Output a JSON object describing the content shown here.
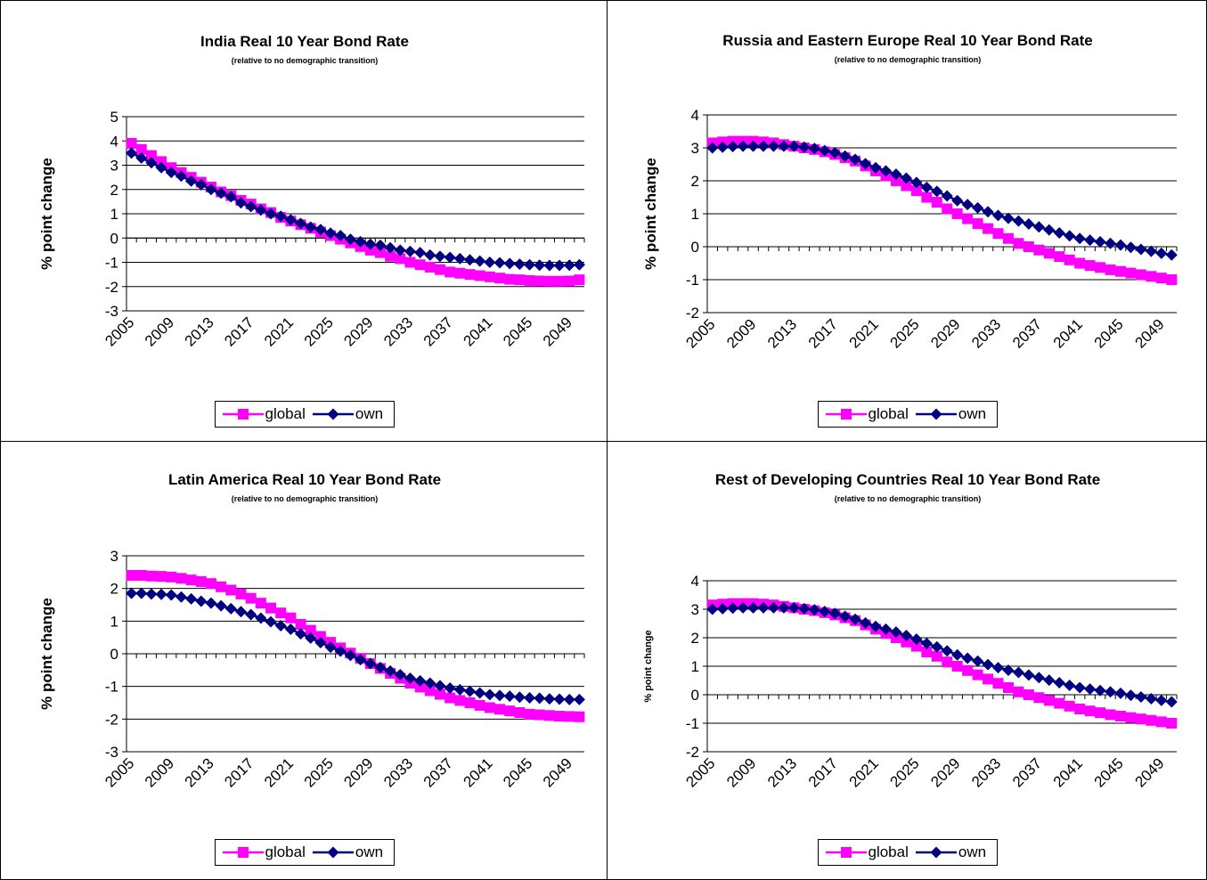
{
  "chart_data": [
    {
      "type": "line",
      "title": "India Real 10 Year Bond Rate",
      "subtitle": "(relative to no demographic transition)",
      "y_label": "% point change",
      "categories": [
        "2005",
        null,
        null,
        null,
        "2009",
        null,
        null,
        null,
        "2013",
        null,
        null,
        null,
        "2017",
        null,
        null,
        null,
        "2021",
        null,
        null,
        null,
        "2025",
        null,
        null,
        null,
        "2029",
        null,
        null,
        null,
        "2033",
        null,
        null,
        null,
        "2037",
        null,
        null,
        null,
        "2041",
        null,
        null,
        null,
        "2045",
        null,
        null,
        null,
        "2049",
        null
      ],
      "ylim": [
        -3,
        5
      ],
      "yticks": [
        -3,
        -2,
        -1,
        0,
        1,
        2,
        3,
        4,
        5
      ],
      "grid": true,
      "legend": "bottom",
      "series": [
        {
          "name": "global",
          "color": "#ff00ff",
          "marker": "square",
          "values": [
            3.9,
            3.65,
            3.4,
            3.15,
            2.9,
            2.7,
            2.5,
            2.3,
            2.1,
            1.9,
            1.75,
            1.55,
            1.4,
            1.2,
            1.05,
            0.85,
            0.7,
            0.55,
            0.4,
            0.25,
            0.1,
            -0.05,
            -0.2,
            -0.35,
            -0.5,
            -0.6,
            -0.75,
            -0.85,
            -1.0,
            -1.1,
            -1.2,
            -1.3,
            -1.4,
            -1.45,
            -1.5,
            -1.55,
            -1.6,
            -1.65,
            -1.7,
            -1.72,
            -1.75,
            -1.77,
            -1.78,
            -1.78,
            -1.77,
            -1.72
          ]
        },
        {
          "name": "own",
          "color": "#000080",
          "marker": "diamond",
          "values": [
            3.5,
            3.3,
            3.1,
            2.9,
            2.7,
            2.55,
            2.35,
            2.2,
            2.0,
            1.85,
            1.7,
            1.45,
            1.3,
            1.15,
            1.0,
            0.9,
            0.75,
            0.6,
            0.45,
            0.35,
            0.2,
            0.1,
            -0.05,
            -0.15,
            -0.25,
            -0.3,
            -0.4,
            -0.5,
            -0.55,
            -0.6,
            -0.7,
            -0.75,
            -0.8,
            -0.85,
            -0.9,
            -0.95,
            -1.0,
            -1.02,
            -1.05,
            -1.08,
            -1.1,
            -1.12,
            -1.13,
            -1.13,
            -1.12,
            -1.1
          ]
        }
      ]
    },
    {
      "type": "line",
      "title": "Russia and Eastern Europe Real 10 Year Bond Rate",
      "subtitle": "(relative to no demographic transition)",
      "y_label": "% point change",
      "categories": [
        "2005",
        null,
        null,
        null,
        "2009",
        null,
        null,
        null,
        "2013",
        null,
        null,
        null,
        "2017",
        null,
        null,
        null,
        "2021",
        null,
        null,
        null,
        "2025",
        null,
        null,
        null,
        "2029",
        null,
        null,
        null,
        "2033",
        null,
        null,
        null,
        "2037",
        null,
        null,
        null,
        "2041",
        null,
        null,
        null,
        "2045",
        null,
        null,
        null,
        "2049",
        null
      ],
      "ylim": [
        -2,
        4
      ],
      "yticks": [
        -2,
        -1,
        0,
        1,
        2,
        3,
        4
      ],
      "grid": true,
      "legend": "bottom",
      "series": [
        {
          "name": "global",
          "color": "#ff00ff",
          "marker": "square",
          "values": [
            3.15,
            3.18,
            3.2,
            3.2,
            3.2,
            3.18,
            3.15,
            3.1,
            3.05,
            3.0,
            2.95,
            2.88,
            2.8,
            2.7,
            2.6,
            2.45,
            2.3,
            2.15,
            2.0,
            1.85,
            1.7,
            1.5,
            1.35,
            1.15,
            1.0,
            0.85,
            0.7,
            0.55,
            0.4,
            0.25,
            0.1,
            0.0,
            -0.1,
            -0.2,
            -0.3,
            -0.4,
            -0.5,
            -0.57,
            -0.63,
            -0.7,
            -0.75,
            -0.8,
            -0.85,
            -0.9,
            -0.95,
            -1.0
          ]
        },
        {
          "name": "own",
          "color": "#000080",
          "marker": "diamond",
          "values": [
            3.0,
            3.02,
            3.04,
            3.05,
            3.05,
            3.05,
            3.05,
            3.05,
            3.05,
            3.02,
            2.98,
            2.92,
            2.85,
            2.75,
            2.65,
            2.52,
            2.4,
            2.3,
            2.2,
            2.08,
            1.95,
            1.8,
            1.68,
            1.54,
            1.4,
            1.28,
            1.18,
            1.06,
            0.95,
            0.86,
            0.78,
            0.69,
            0.6,
            0.51,
            0.42,
            0.33,
            0.25,
            0.2,
            0.15,
            0.1,
            0.05,
            -0.02,
            -0.08,
            -0.14,
            -0.2,
            -0.25
          ]
        }
      ]
    },
    {
      "type": "line",
      "title": "Latin America Real 10 Year Bond Rate",
      "subtitle": "(relative to no demographic transition)",
      "y_label": "% point change",
      "categories": [
        "2005",
        null,
        null,
        null,
        "2009",
        null,
        null,
        null,
        "2013",
        null,
        null,
        null,
        "2017",
        null,
        null,
        null,
        "2021",
        null,
        null,
        null,
        "2025",
        null,
        null,
        null,
        "2029",
        null,
        null,
        null,
        "2033",
        null,
        null,
        null,
        "2037",
        null,
        null,
        null,
        "2041",
        null,
        null,
        null,
        "2045",
        null,
        null,
        null,
        "2049",
        null
      ],
      "ylim": [
        -3,
        3
      ],
      "yticks": [
        -3,
        -2,
        -1,
        0,
        1,
        2,
        3
      ],
      "grid": true,
      "legend": "bottom",
      "series": [
        {
          "name": "global",
          "color": "#ff00ff",
          "marker": "square",
          "values": [
            2.4,
            2.4,
            2.38,
            2.37,
            2.35,
            2.31,
            2.26,
            2.21,
            2.15,
            2.05,
            1.95,
            1.83,
            1.7,
            1.55,
            1.4,
            1.25,
            1.1,
            0.9,
            0.72,
            0.53,
            0.35,
            0.18,
            0.02,
            -0.14,
            -0.3,
            -0.45,
            -0.6,
            -0.75,
            -0.9,
            -1.02,
            -1.13,
            -1.24,
            -1.35,
            -1.43,
            -1.5,
            -1.58,
            -1.65,
            -1.7,
            -1.75,
            -1.8,
            -1.85,
            -1.87,
            -1.89,
            -1.91,
            -1.92,
            -1.93
          ]
        },
        {
          "name": "own",
          "color": "#000080",
          "marker": "diamond",
          "values": [
            1.85,
            1.85,
            1.83,
            1.82,
            1.8,
            1.74,
            1.68,
            1.61,
            1.55,
            1.47,
            1.38,
            1.29,
            1.2,
            1.09,
            0.98,
            0.86,
            0.75,
            0.61,
            0.48,
            0.34,
            0.2,
            0.08,
            -0.05,
            -0.18,
            -0.3,
            -0.42,
            -0.53,
            -0.64,
            -0.75,
            -0.83,
            -0.9,
            -0.98,
            -1.05,
            -1.1,
            -1.15,
            -1.2,
            -1.25,
            -1.28,
            -1.3,
            -1.33,
            -1.35,
            -1.36,
            -1.38,
            -1.39,
            -1.4,
            -1.4
          ]
        }
      ]
    },
    {
      "type": "line",
      "title": "Rest of Developing Countries Real 10 Year Bond Rate",
      "subtitle": "(relative to no demographic transition)",
      "y_label": "% point change",
      "categories": [
        "2005",
        null,
        null,
        null,
        "2009",
        null,
        null,
        null,
        "2013",
        null,
        null,
        null,
        "2017",
        null,
        null,
        null,
        "2021",
        null,
        null,
        null,
        "2025",
        null,
        null,
        null,
        "2029",
        null,
        null,
        null,
        "2033",
        null,
        null,
        null,
        "2037",
        null,
        null,
        null,
        "2041",
        null,
        null,
        null,
        "2045",
        null,
        null,
        null,
        "2049",
        null
      ],
      "ylim": [
        -2,
        4
      ],
      "yticks": [
        -2,
        -1,
        0,
        1,
        2,
        3,
        4
      ],
      "grid": true,
      "legend": "bottom",
      "series": [
        {
          "name": "global",
          "color": "#ff00ff",
          "marker": "square",
          "values": [
            3.15,
            3.18,
            3.2,
            3.2,
            3.2,
            3.18,
            3.15,
            3.1,
            3.05,
            3.0,
            2.95,
            2.88,
            2.8,
            2.7,
            2.6,
            2.45,
            2.3,
            2.15,
            2.0,
            1.85,
            1.7,
            1.5,
            1.35,
            1.15,
            1.0,
            0.85,
            0.7,
            0.55,
            0.4,
            0.25,
            0.1,
            0.0,
            -0.1,
            -0.2,
            -0.3,
            -0.4,
            -0.5,
            -0.57,
            -0.63,
            -0.7,
            -0.75,
            -0.8,
            -0.85,
            -0.9,
            -0.95,
            -1.0
          ]
        },
        {
          "name": "own",
          "color": "#000080",
          "marker": "diamond",
          "values": [
            3.0,
            3.02,
            3.04,
            3.05,
            3.05,
            3.05,
            3.05,
            3.05,
            3.05,
            3.02,
            2.98,
            2.92,
            2.85,
            2.75,
            2.65,
            2.52,
            2.4,
            2.3,
            2.2,
            2.08,
            1.95,
            1.8,
            1.68,
            1.54,
            1.4,
            1.28,
            1.18,
            1.06,
            0.95,
            0.86,
            0.78,
            0.69,
            0.6,
            0.51,
            0.42,
            0.33,
            0.25,
            0.2,
            0.15,
            0.1,
            0.05,
            -0.02,
            -0.08,
            -0.14,
            -0.2,
            -0.25
          ]
        }
      ]
    }
  ]
}
